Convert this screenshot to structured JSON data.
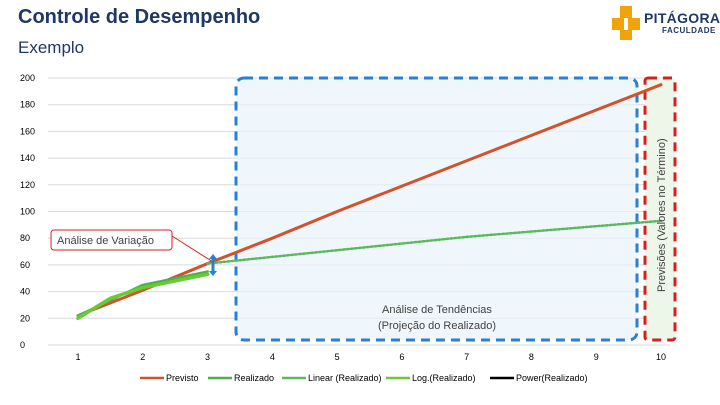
{
  "header": {
    "title": "Controle de Desempenho",
    "subtitle": "Exemplo"
  },
  "logo": {
    "name": "PITÁGORAS",
    "sub": "FACULDADE",
    "accent": "#f0a30a"
  },
  "annotations": {
    "variance": "Análise de Variação",
    "trend_line1": "Análise de Tendências",
    "trend_line2": "(Projeção do Realizado)",
    "forecast": "Previsões (Valores no Término)"
  },
  "chart_data": {
    "type": "line",
    "x": [
      1,
      2,
      3,
      4,
      5,
      6,
      7,
      8,
      9,
      10
    ],
    "xlim": [
      1,
      10
    ],
    "ylim": [
      0,
      200
    ],
    "y_ticks": [
      0,
      20,
      40,
      60,
      80,
      100,
      120,
      140,
      160,
      180,
      200
    ],
    "x_ticks": [
      1,
      2,
      3,
      4,
      5,
      6,
      7,
      8,
      9,
      10
    ],
    "legend_position": "bottom",
    "series": [
      {
        "name": "Previsto",
        "color": "#d2522b",
        "style": "solid",
        "x": [
          1,
          2,
          3,
          4,
          5,
          6,
          7,
          8,
          9,
          10
        ],
        "values": [
          22,
          41,
          61,
          80,
          100,
          119,
          138,
          157,
          176,
          195
        ]
      },
      {
        "name": "Realizado",
        "color": "#4caf50",
        "style": "solid",
        "x": [
          1,
          2,
          3
        ],
        "values": [
          22,
          45,
          55
        ]
      },
      {
        "name": "Linear (Realizado)",
        "color": "#5cb85c",
        "style": "dotted",
        "x": [
          3,
          4,
          5,
          6,
          7,
          8,
          9,
          10
        ],
        "values": [
          61,
          66,
          71,
          76,
          81,
          85,
          89,
          93
        ]
      },
      {
        "name": "Log.(Realizado)",
        "color": "#66cc33",
        "style": "solid",
        "x": [
          1,
          1.5,
          2,
          2.5,
          3
        ],
        "values": [
          20,
          35,
          43,
          48,
          53
        ]
      },
      {
        "name": "Power(Realizado)",
        "color": "#000000",
        "style": "solid",
        "x": [],
        "values": []
      }
    ]
  }
}
